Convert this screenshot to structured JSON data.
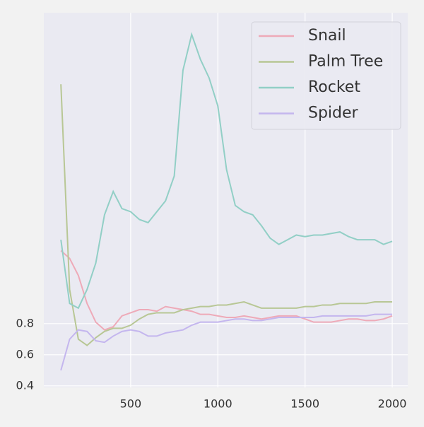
{
  "chart_data": {
    "type": "line",
    "x": [
      100,
      150,
      200,
      250,
      300,
      350,
      400,
      450,
      500,
      550,
      600,
      650,
      700,
      750,
      800,
      850,
      900,
      950,
      1000,
      1050,
      1100,
      1150,
      1200,
      1250,
      1300,
      1350,
      1400,
      1450,
      1500,
      1550,
      1600,
      1650,
      1700,
      1750,
      1800,
      1850,
      1900,
      1950,
      2000
    ],
    "series": [
      {
        "name": "Snail",
        "color": "#eeaab8",
        "values": [
          1.27,
          1.22,
          1.11,
          0.93,
          0.81,
          0.76,
          0.78,
          0.85,
          0.87,
          0.89,
          0.89,
          0.88,
          0.91,
          0.9,
          0.89,
          0.88,
          0.86,
          0.86,
          0.85,
          0.84,
          0.84,
          0.85,
          0.84,
          0.83,
          0.84,
          0.85,
          0.85,
          0.85,
          0.83,
          0.81,
          0.81,
          0.81,
          0.82,
          0.83,
          0.83,
          0.82,
          0.82,
          0.83,
          0.85
        ]
      },
      {
        "name": "Palm Tree",
        "color": "#b8c795",
        "values": [
          2.34,
          1.02,
          0.7,
          0.66,
          0.71,
          0.75,
          0.77,
          0.77,
          0.79,
          0.83,
          0.86,
          0.87,
          0.87,
          0.87,
          0.89,
          0.9,
          0.91,
          0.91,
          0.92,
          0.92,
          0.93,
          0.94,
          0.92,
          0.9,
          0.9,
          0.9,
          0.9,
          0.9,
          0.91,
          0.91,
          0.92,
          0.92,
          0.93,
          0.93,
          0.93,
          0.93,
          0.94,
          0.94,
          0.94
        ]
      },
      {
        "name": "Rocket",
        "color": "#92cfc6",
        "values": [
          1.34,
          0.93,
          0.9,
          1.02,
          1.19,
          1.5,
          1.65,
          1.54,
          1.52,
          1.47,
          1.45,
          1.52,
          1.59,
          1.75,
          2.43,
          2.66,
          2.5,
          2.38,
          2.2,
          1.79,
          1.56,
          1.52,
          1.5,
          1.43,
          1.35,
          1.31,
          1.34,
          1.37,
          1.36,
          1.37,
          1.37,
          1.38,
          1.39,
          1.36,
          1.34,
          1.34,
          1.34,
          1.31,
          1.33
        ]
      },
      {
        "name": "Spider",
        "color": "#c4b6ee",
        "values": [
          0.5,
          0.7,
          0.76,
          0.75,
          0.69,
          0.68,
          0.72,
          0.75,
          0.76,
          0.75,
          0.72,
          0.72,
          0.74,
          0.75,
          0.76,
          0.79,
          0.81,
          0.81,
          0.81,
          0.82,
          0.83,
          0.83,
          0.82,
          0.82,
          0.83,
          0.84,
          0.84,
          0.84,
          0.84,
          0.84,
          0.85,
          0.85,
          0.85,
          0.85,
          0.85,
          0.85,
          0.86,
          0.86,
          0.86
        ]
      }
    ],
    "xlim": [
      2,
      2089
    ],
    "ylim": [
      0.39,
      2.8
    ],
    "xticks": [
      500,
      1000,
      1500,
      2000
    ],
    "yticks": [
      0.4,
      0.6,
      0.8
    ],
    "grid": true,
    "legend": "upper right"
  }
}
